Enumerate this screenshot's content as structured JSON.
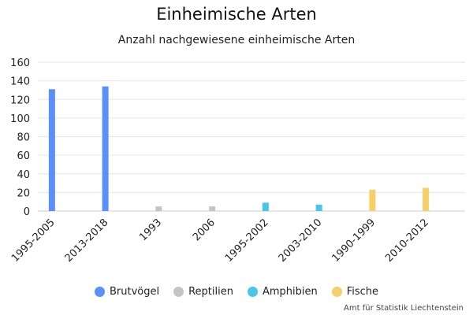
{
  "chart_data": {
    "type": "bar",
    "title": "Einheimische Arten",
    "subtitle": "Anzahl nachgewiesene einheimische Arten",
    "xlabel": "",
    "ylabel": "",
    "ylim": [
      0,
      160
    ],
    "yticks": [
      0,
      20,
      40,
      60,
      80,
      100,
      120,
      140,
      160
    ],
    "grid": true,
    "legend_position": "bottom",
    "categories": [
      "1995-2005",
      "2013-2018",
      "1993",
      "2006",
      "1995-2002",
      "2003-2010",
      "1990-1999",
      "2010-2012"
    ],
    "series": [
      {
        "name": "Brutvögel",
        "color": "#5b8ff9",
        "values": [
          131,
          134,
          null,
          null,
          null,
          null,
          null,
          null
        ]
      },
      {
        "name": "Reptilien",
        "color": "#c4c4c4",
        "values": [
          null,
          null,
          5,
          5,
          null,
          null,
          null,
          null
        ]
      },
      {
        "name": "Amphibien",
        "color": "#48c6ec",
        "values": [
          null,
          null,
          null,
          null,
          9,
          7,
          null,
          null
        ]
      },
      {
        "name": "Fische",
        "color": "#f5cf67",
        "values": [
          null,
          null,
          null,
          null,
          null,
          null,
          23,
          25
        ]
      }
    ]
  },
  "credit": "Amt für Statistik Liechtenstein"
}
